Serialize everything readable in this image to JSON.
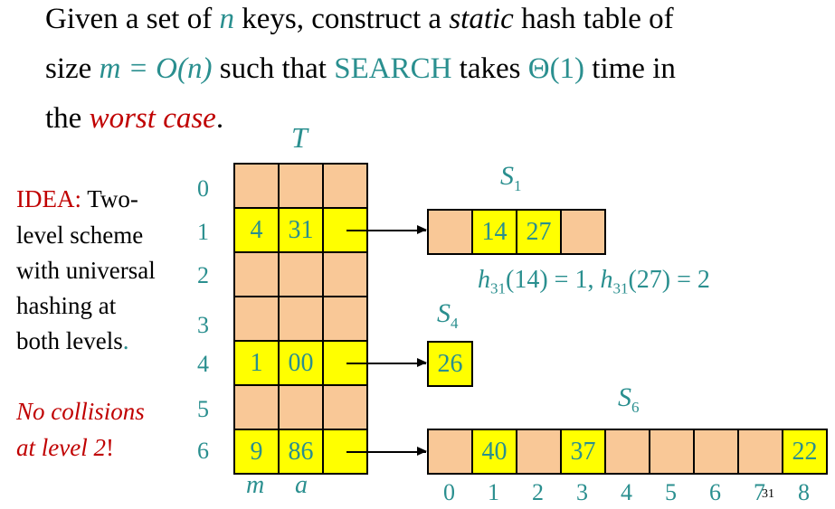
{
  "heading": {
    "l1_a": "Given a set of ",
    "l1_n": "n",
    "l1_b": " keys, construct a ",
    "l1_static": "static",
    "l1_c": " hash table of",
    "l2_a": "size ",
    "l2_m": "m = O(n)",
    "l2_b": " such that ",
    "l2_search": "SEARCH",
    "l2_c": "  takes ",
    "l2_theta": "Θ(1)",
    "l2_d": " time in",
    "l3_a": "the ",
    "l3_worst": "worst case",
    "l3_b": "."
  },
  "idea": {
    "label": "IDEA:",
    "line1": " Two-",
    "line2": "level scheme",
    "line3": "with universal",
    "line4": "hashing at",
    "line5": "both levels",
    "period": "."
  },
  "no_collisions": {
    "line1": "No collisions",
    "line2": "at level 2",
    "bang": "!"
  },
  "table_T": {
    "title": "T",
    "row_indices": [
      "0",
      "1",
      "2",
      "3",
      "4",
      "5",
      "6"
    ],
    "rows": [
      [
        "",
        "",
        ""
      ],
      [
        "4",
        "31",
        ""
      ],
      [
        "",
        "",
        ""
      ],
      [
        "",
        "",
        ""
      ],
      [
        "1",
        "00",
        ""
      ],
      [
        "",
        "",
        ""
      ],
      [
        "9",
        "86",
        ""
      ]
    ],
    "col_labels": [
      "m",
      "a"
    ]
  },
  "S1": {
    "label": "S",
    "sub": "1",
    "cells": [
      "",
      "14",
      "27",
      ""
    ]
  },
  "hash_eq": {
    "h1": "h",
    "s1": "31",
    "a1": "(14) = 1, ",
    "h2": "h",
    "s2": "31",
    "a2": "(27) = 2"
  },
  "S4": {
    "label": "S",
    "sub": "4",
    "cells": [
      "26"
    ]
  },
  "S6": {
    "label": "S",
    "sub": "6",
    "cells": [
      "",
      "40",
      "",
      "37",
      "",
      "",
      "",
      "",
      "22"
    ],
    "indices": [
      "0",
      "1",
      "2",
      "3",
      "4",
      "5",
      "6",
      "7",
      "8"
    ]
  },
  "page_number": "31",
  "colors": {
    "teal": "#2a8f8f",
    "red": "#c00000",
    "cell_fill": "#f9c897",
    "highlight": "#ffff00"
  }
}
